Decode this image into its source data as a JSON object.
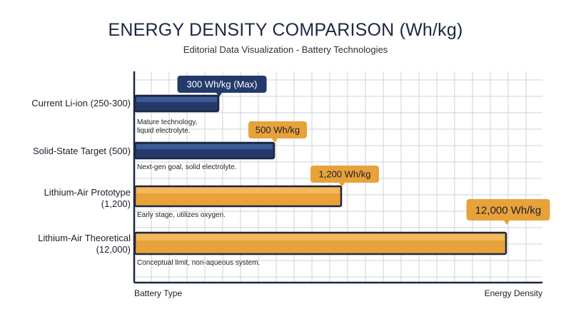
{
  "title": "ENERGY DENSITY COMPARISON (Wh/kg)",
  "subtitle": "Editorial Data Visualization - Battery Technologies",
  "chart_data": {
    "type": "bar",
    "orientation": "horizontal",
    "categories": [
      "Current Li-ion (250-300)",
      "Solid-State Target (500)",
      "Lithium-Air Prototype\n(1,200)",
      "Lithium-Air Theoretical\n(12,000)"
    ],
    "values": [
      300,
      500,
      1200,
      12000
    ],
    "data_labels": [
      "300 Wh/kg (Max)",
      "500 Wh/kg",
      "1,200 Wh/kg",
      "12,000 Wh/kg"
    ],
    "annotations": [
      "Mature technology,\nliquid electrolyte.",
      "Next-gen goal, solid electrolyte.",
      "Early stage, utilizes oxygen.",
      "Conceptual limit, non-aqueous system."
    ],
    "bar_colors": [
      "#233a6b",
      "#233a6b",
      "#e8a23a",
      "#e8a23a"
    ],
    "xlabel": "Energy Density",
    "ylabel": "Battery Type",
    "axis_scale": "non-linear (illustrative)",
    "grid": true,
    "legend": "none"
  }
}
